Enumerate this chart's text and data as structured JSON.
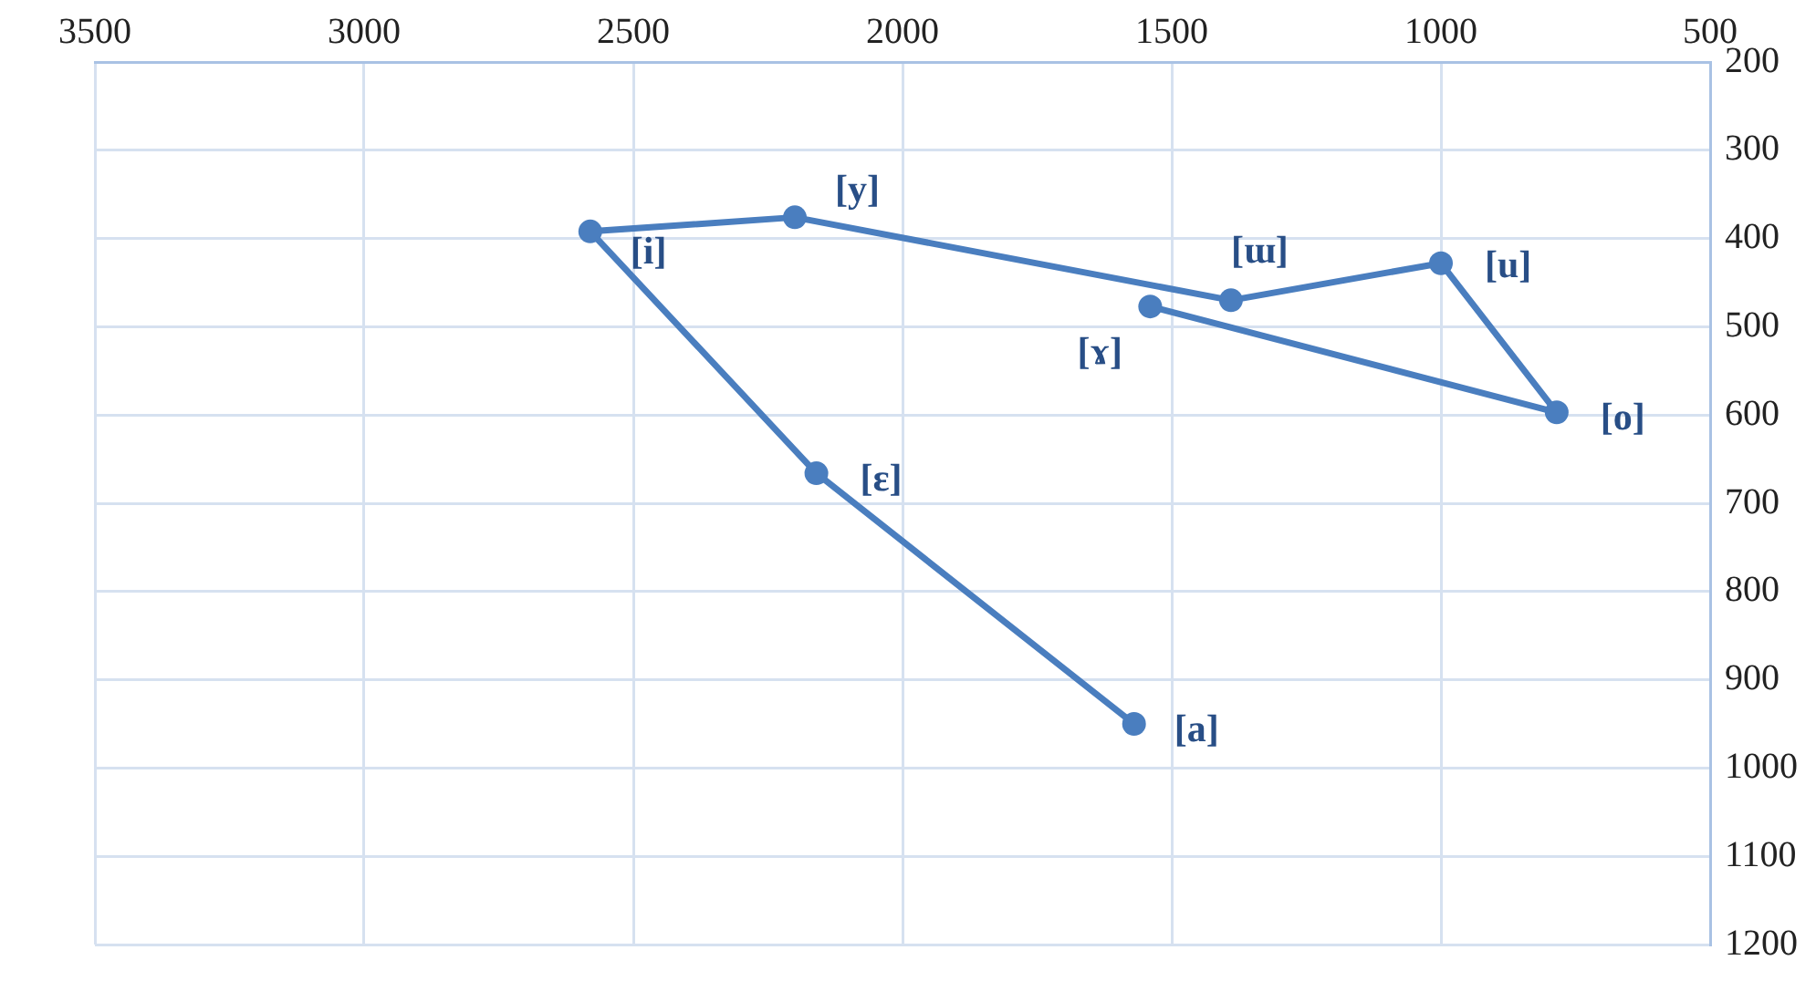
{
  "chart_data": {
    "type": "line",
    "marker": "circle",
    "line_style": "solid",
    "grid": true,
    "legend": false,
    "xlim": [
      3500,
      500
    ],
    "xticks": [
      3500,
      3000,
      2500,
      2000,
      1500,
      1000,
      500
    ],
    "ylim": [
      1200,
      200
    ],
    "yticks": [
      200,
      300,
      400,
      500,
      600,
      700,
      800,
      900,
      1000,
      1100,
      1200
    ],
    "series": [
      {
        "color": "#4a7ebf",
        "x": [
          1570,
          2160,
          2580,
          2200,
          1390,
          1000,
          785,
          1540
        ],
        "values": [
          950,
          666,
          392,
          376,
          470,
          428,
          597,
          477
        ]
      }
    ],
    "annotations": [
      {
        "text": "[a]",
        "x": 1570,
        "y": 950
      },
      {
        "text": "[ɛ]",
        "x": 2160,
        "y": 666
      },
      {
        "text": "[i]",
        "x": 2580,
        "y": 392
      },
      {
        "text": "[y]",
        "x": 2200,
        "y": 376
      },
      {
        "text": "[ɯ]",
        "x": 1390,
        "y": 470
      },
      {
        "text": "[u]",
        "x": 1000,
        "y": 428
      },
      {
        "text": "[o]",
        "x": 785,
        "y": 597
      },
      {
        "text": "[ɤ]",
        "x": 1540,
        "y": 477
      }
    ]
  }
}
